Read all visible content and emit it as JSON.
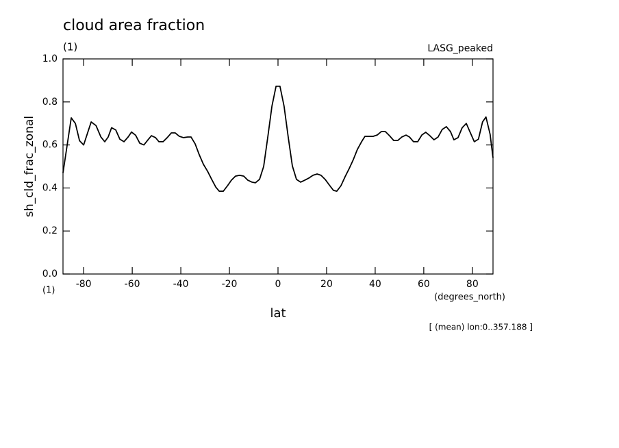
{
  "chart_data": {
    "type": "line",
    "title": "cloud area fraction",
    "title_units": "(1)",
    "subtitle_right": "LASG_peaked",
    "y_label": "sh_cld_frac_zonal",
    "x_units_left": "(1)",
    "x_units": "(degrees_north)",
    "x_label": "lat",
    "annotation": "[ (mean) lon:0..357.188 ]",
    "color": "#000000",
    "xlim": [
      -88.5,
      88.5
    ],
    "ylim": [
      0,
      1
    ],
    "xticks": [
      -80,
      -60,
      -40,
      -20,
      0,
      20,
      40,
      60,
      80
    ],
    "yticks": [
      {
        "value": 0,
        "label": "0.0"
      },
      {
        "value": 0.2,
        "label": "0.2"
      },
      {
        "value": 0.4,
        "label": "0.4"
      },
      {
        "value": 0.6,
        "label": "0.6"
      },
      {
        "value": 0.8,
        "label": "0.8"
      },
      {
        "value": 1,
        "label": "1.0"
      }
    ],
    "x": [
      -88.5,
      -85.1,
      -83.4,
      -81.7,
      -80,
      -76.9,
      -74.9,
      -72.9,
      -71.3,
      -69.9,
      -68.5,
      -66.8,
      -65.1,
      -63.4,
      -61.7,
      -60.3,
      -58.6,
      -56.9,
      -55.2,
      -53.5,
      -52.1,
      -50.4,
      -49,
      -47.3,
      -45.6,
      -43.9,
      -42.3,
      -40.6,
      -38.9,
      -37.2,
      -35.8,
      -34.1,
      -32.4,
      -30.7,
      -29,
      -27.3,
      -25.6,
      -24.2,
      -22.5,
      -20.8,
      -19.2,
      -17.5,
      -15.8,
      -14.1,
      -12.4,
      -10.7,
      -9.3,
      -7.6,
      -5.9,
      -4.2,
      -2.5,
      -0.8,
      0.8,
      2.5,
      4.2,
      5.9,
      7.6,
      9.3,
      11,
      12.7,
      14.4,
      16.1,
      17.7,
      19.4,
      21.1,
      22.8,
      24.2,
      25.9,
      27.6,
      29.3,
      31,
      32.7,
      34.4,
      35.8,
      37.5,
      39.2,
      40.8,
      42.5,
      44.2,
      45.9,
      47.6,
      49.3,
      51,
      52.7,
      54.1,
      55.8,
      57.5,
      59.2,
      60.8,
      62.5,
      64.2,
      65.9,
      67.6,
      69.3,
      71,
      72.4,
      74.1,
      75.8,
      77.5,
      79.2,
      80.8,
      82.5,
      84.2,
      85.6,
      87.3,
      88.5
    ],
    "values": [
      0.47,
      0.726,
      0.7,
      0.62,
      0.6,
      0.707,
      0.69,
      0.637,
      0.615,
      0.637,
      0.68,
      0.67,
      0.627,
      0.615,
      0.637,
      0.66,
      0.645,
      0.608,
      0.6,
      0.624,
      0.643,
      0.634,
      0.615,
      0.615,
      0.634,
      0.656,
      0.656,
      0.64,
      0.634,
      0.637,
      0.637,
      0.605,
      0.554,
      0.51,
      0.478,
      0.44,
      0.404,
      0.385,
      0.385,
      0.41,
      0.436,
      0.455,
      0.459,
      0.455,
      0.436,
      0.427,
      0.424,
      0.44,
      0.5,
      0.637,
      0.78,
      0.873,
      0.873,
      0.78,
      0.637,
      0.503,
      0.44,
      0.427,
      0.436,
      0.446,
      0.459,
      0.465,
      0.459,
      0.44,
      0.414,
      0.389,
      0.385,
      0.41,
      0.452,
      0.49,
      0.532,
      0.58,
      0.615,
      0.64,
      0.64,
      0.64,
      0.646,
      0.662,
      0.662,
      0.643,
      0.621,
      0.621,
      0.637,
      0.646,
      0.637,
      0.615,
      0.615,
      0.646,
      0.659,
      0.643,
      0.624,
      0.637,
      0.672,
      0.685,
      0.662,
      0.624,
      0.634,
      0.68,
      0.7,
      0.656,
      0.615,
      0.627,
      0.707,
      0.73,
      0.65,
      0.54
    ]
  }
}
